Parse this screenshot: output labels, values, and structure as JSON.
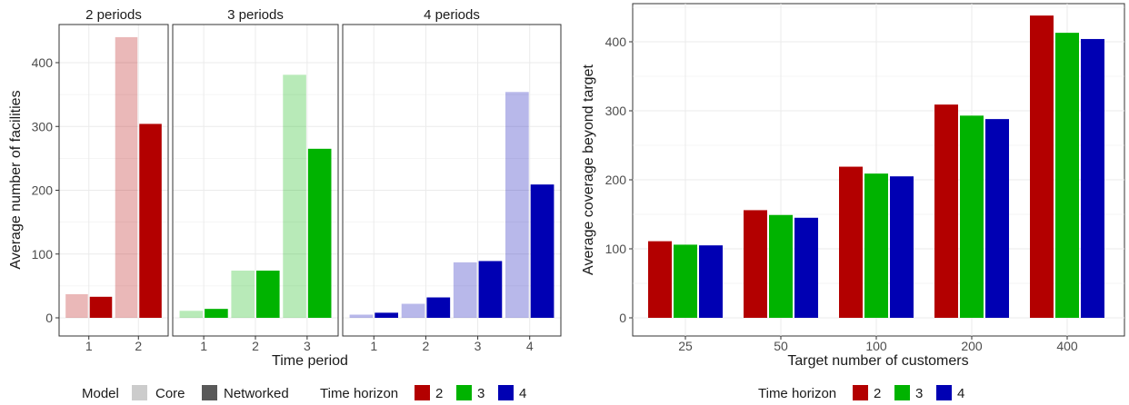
{
  "colors": {
    "h2": "#b30000",
    "h3": "#00b300",
    "h4": "#0000b3",
    "core_opacity": 0.28,
    "legend_core": "#cccccc",
    "legend_networked": "#595959",
    "grid": "#ebebeb",
    "panel_border": "#333333"
  },
  "chart_data": [
    {
      "type": "bar",
      "facet_by": "time_horizon",
      "ylabel": "Average number of facilities",
      "xlabel": "Time period",
      "ylim": [
        0,
        455
      ],
      "y_ticks": [
        0,
        100,
        200,
        300,
        400
      ],
      "facets": [
        {
          "strip": "2 periods",
          "horizon": "2",
          "categories": [
            "1",
            "2"
          ],
          "series": [
            {
              "name": "Core",
              "values": [
                37,
                440
              ]
            },
            {
              "name": "Networked",
              "values": [
                33,
                304
              ]
            }
          ]
        },
        {
          "strip": "3 periods",
          "horizon": "3",
          "categories": [
            "1",
            "2",
            "3"
          ],
          "series": [
            {
              "name": "Core",
              "values": [
                11,
                74,
                381
              ]
            },
            {
              "name": "Networked",
              "values": [
                14,
                74,
                265
              ]
            }
          ]
        },
        {
          "strip": "4 periods",
          "horizon": "4",
          "categories": [
            "1",
            "2",
            "3",
            "4"
          ],
          "series": [
            {
              "name": "Core",
              "values": [
                5,
                22,
                87,
                354
              ]
            },
            {
              "name": "Networked",
              "values": [
                8,
                32,
                89,
                209
              ]
            }
          ]
        }
      ],
      "legend": {
        "position": "bottom",
        "model_title": "Model",
        "model_items": [
          "Core",
          "Networked"
        ],
        "horizon_title": "Time horizon",
        "horizon_items": [
          "2",
          "3",
          "4"
        ]
      }
    },
    {
      "type": "bar",
      "ylabel": "Average coverage beyond target",
      "xlabel": "Target number of customers",
      "ylim": [
        -15,
        460
      ],
      "y_ticks": [
        0,
        100,
        200,
        300,
        400
      ],
      "categories": [
        "25",
        "50",
        "100",
        "200",
        "400"
      ],
      "series": [
        {
          "name": "2",
          "values": [
            111,
            156,
            219,
            309,
            438
          ]
        },
        {
          "name": "3",
          "values": [
            106,
            149,
            209,
            293,
            413
          ]
        },
        {
          "name": "4",
          "values": [
            105,
            145,
            205,
            288,
            404
          ]
        }
      ],
      "legend": {
        "position": "bottom",
        "horizon_title": "Time horizon",
        "horizon_items": [
          "2",
          "3",
          "4"
        ]
      }
    }
  ]
}
